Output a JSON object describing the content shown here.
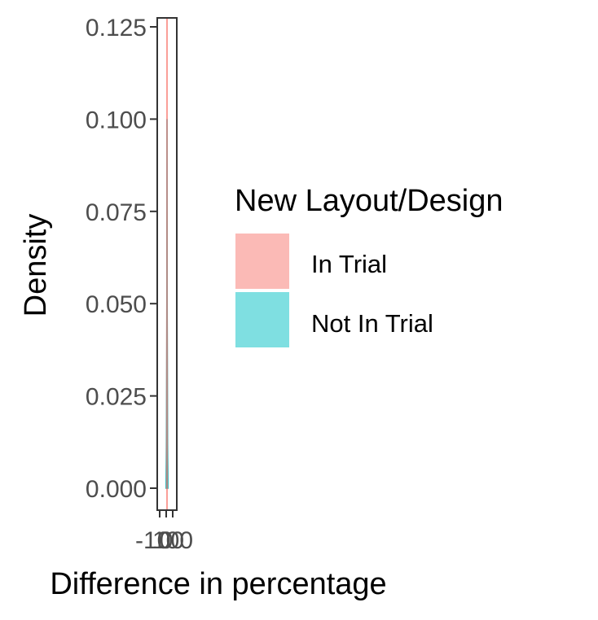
{
  "chart_data": {
    "type": "area",
    "xlabel": "Difference in percentage",
    "ylabel": "Density",
    "ylim": [
      0,
      0.125
    ],
    "y_ticks": [
      "0.000",
      "0.025",
      "0.050",
      "0.075",
      "0.100",
      "0.125"
    ],
    "x_ticks": [
      "-100",
      "0",
      "100"
    ],
    "legend": {
      "title": "New Layout/Design",
      "position": "right",
      "entries": [
        "In Trial",
        "Not In Trial"
      ]
    },
    "series": [
      {
        "name": "In Trial",
        "color": "#F8766D",
        "x": [
          -10,
          -6,
          -3,
          -1,
          0,
          1,
          3,
          6,
          10
        ],
        "y": [
          0.005,
          0.02,
          0.05,
          0.07,
          0.075,
          0.068,
          0.045,
          0.018,
          0.004
        ]
      },
      {
        "name": "Not In Trial",
        "color": "#00BFC4",
        "x": [
          -10,
          -6,
          -3,
          -1,
          0,
          1,
          3,
          6,
          10
        ],
        "y": [
          0.002,
          0.01,
          0.04,
          0.085,
          0.1,
          0.09,
          0.045,
          0.012,
          0.002
        ]
      }
    ],
    "vlines": [
      {
        "series": "In Trial",
        "x": 0,
        "color": "#F8766D"
      }
    ],
    "grid": false
  }
}
